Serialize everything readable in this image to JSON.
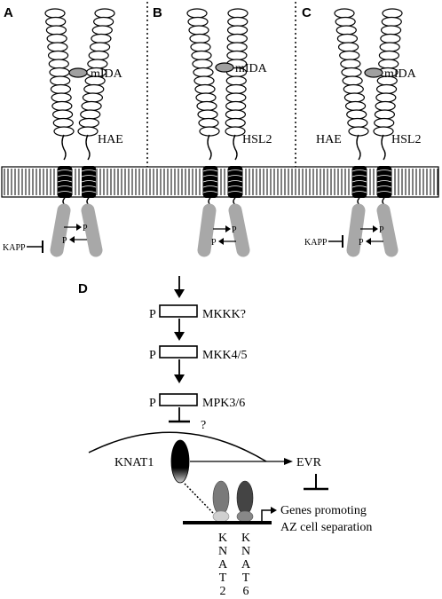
{
  "panels": {
    "a": {
      "letter": "A",
      "ligand": "mIDA",
      "receptor1": "HAE",
      "inhibitor": "KAPP",
      "p_top": "P",
      "p_bottom": "P"
    },
    "b": {
      "letter": "B",
      "ligand": "mIDA",
      "receptor1": "HSL2",
      "p_top": "P",
      "p_bottom": "P"
    },
    "c": {
      "letter": "C",
      "ligand": "mIDA",
      "receptor1": "HAE",
      "receptor2": "HSL2",
      "inhibitor": "KAPP",
      "p_top": "P",
      "p_bottom": "P"
    },
    "d": {
      "letter": "D",
      "kinase1_p": "P",
      "kinase1": "MKKK?",
      "kinase2_p": "P",
      "kinase2": "MKK4/5",
      "kinase3_p": "P",
      "kinase3": "MPK3/6",
      "question": "?",
      "knat1": "KNAT1",
      "evr": "EVR",
      "genes_line1": "Genes promoting",
      "genes_line2": "AZ cell separation",
      "knat2_letters": [
        "K",
        "N",
        "A",
        "T",
        "2"
      ],
      "knat6_letters": [
        "K",
        "N",
        "A",
        "T",
        "6"
      ]
    }
  },
  "colors": {
    "line": "#000000",
    "kinase_gray": "#a8a8a8",
    "ligand": "#a0a0a0",
    "knat2_body": "#7a7a7a",
    "knat6_body": "#444444",
    "membrane_fill": "#ffffff"
  }
}
